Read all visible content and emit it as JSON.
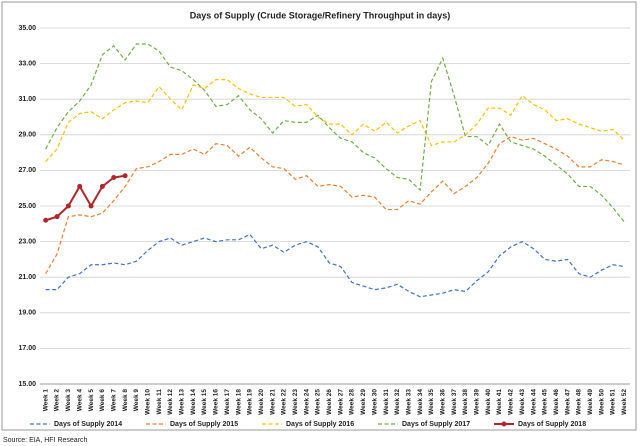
{
  "chart_data": {
    "type": "line",
    "title": "Days of Supply (Crude Storage/Refinery Throughput in days)",
    "source": "Source: EIA, HFI Research",
    "categories": [
      "Week 1",
      "Week 2",
      "Week 3",
      "Week 4",
      "Week 5",
      "Week 6",
      "Week 7",
      "Week 8",
      "Week 9",
      "Week 10",
      "Week 11",
      "Week 12",
      "Week 13",
      "Week 14",
      "Week 15",
      "Week 16",
      "Week 17",
      "Week 18",
      "Week 19",
      "Week 20",
      "Week 21",
      "Week 22",
      "Week 23",
      "Week 24",
      "Week 25",
      "Week 26",
      "Week 27",
      "Week 28",
      "Week 29",
      "Week 30",
      "Week 31",
      "Week 32",
      "Week 33",
      "Week 34",
      "Week 35",
      "Week 36",
      "Week 37",
      "Week 38",
      "Week 39",
      "Week 40",
      "Week 41",
      "Week 42",
      "Week 43",
      "Week 44",
      "Week 45",
      "Week 46",
      "Week 47",
      "Week 48",
      "Week 49",
      "Week 50",
      "Week 51",
      "Week 52"
    ],
    "series": [
      {
        "name": "Days of Supply 2014",
        "color": "#4472c4",
        "style": "dashed",
        "markers": false,
        "values": [
          20.3,
          20.3,
          21.0,
          21.2,
          21.7,
          21.7,
          21.8,
          21.7,
          21.9,
          22.5,
          23.0,
          23.2,
          22.8,
          23.0,
          23.2,
          23.0,
          23.1,
          23.1,
          23.4,
          22.6,
          22.8,
          22.4,
          22.8,
          23.0,
          22.7,
          21.8,
          21.6,
          20.7,
          20.5,
          20.3,
          20.4,
          20.6,
          20.2,
          19.9,
          20.0,
          20.1,
          20.3,
          20.2,
          20.8,
          21.3,
          22.2,
          22.7,
          23.0,
          22.6,
          22.0,
          21.9,
          22.0,
          21.2,
          21.0,
          21.4,
          21.7,
          21.6
        ]
      },
      {
        "name": "Days of Supply 2015",
        "color": "#ed7d31",
        "style": "dashed",
        "markers": false,
        "values": [
          21.2,
          22.3,
          24.4,
          24.5,
          24.4,
          24.6,
          25.3,
          26.1,
          27.1,
          27.2,
          27.5,
          27.9,
          27.9,
          28.2,
          27.9,
          28.5,
          28.4,
          27.8,
          28.3,
          27.7,
          27.2,
          27.1,
          26.5,
          26.7,
          26.1,
          26.2,
          26.1,
          25.5,
          25.6,
          25.5,
          24.8,
          24.8,
          25.3,
          25.1,
          25.8,
          26.4,
          25.7,
          26.1,
          26.6,
          27.4,
          28.5,
          28.9,
          28.7,
          28.8,
          28.5,
          28.2,
          27.8,
          27.2,
          27.2,
          27.6,
          27.5,
          27.3
        ]
      },
      {
        "name": "Days of Supply 2016",
        "color": "#ffc000",
        "style": "dashed",
        "markers": false,
        "values": [
          27.5,
          28.2,
          29.7,
          30.2,
          30.3,
          29.9,
          30.4,
          30.8,
          30.9,
          30.8,
          31.7,
          31.0,
          30.4,
          31.8,
          31.6,
          32.1,
          32.1,
          31.6,
          31.3,
          31.1,
          31.1,
          31.1,
          30.6,
          30.7,
          30.0,
          29.6,
          29.6,
          29.0,
          29.6,
          29.2,
          29.7,
          29.1,
          29.5,
          29.8,
          28.4,
          28.6,
          28.6,
          29.0,
          29.6,
          30.5,
          30.5,
          30.1,
          31.2,
          30.7,
          30.4,
          29.8,
          29.9,
          29.6,
          29.4,
          29.2,
          29.3,
          28.7
        ]
      },
      {
        "name": "Days of Supply 2017",
        "color": "#70ad47",
        "style": "dashed",
        "markers": false,
        "values": [
          28.2,
          29.4,
          30.3,
          30.9,
          31.8,
          33.5,
          34.0,
          33.2,
          34.1,
          34.1,
          33.7,
          32.8,
          32.6,
          32.1,
          31.5,
          30.6,
          30.7,
          31.2,
          30.4,
          29.9,
          29.1,
          29.8,
          29.7,
          29.7,
          30.1,
          29.4,
          28.8,
          28.6,
          28.0,
          27.7,
          27.1,
          26.6,
          26.5,
          25.9,
          32.0,
          33.3,
          31.2,
          28.9,
          28.9,
          28.4,
          29.6,
          28.6,
          28.4,
          28.2,
          27.8,
          27.3,
          26.8,
          26.1,
          26.1,
          25.6,
          24.9,
          24.1
        ]
      },
      {
        "name": "Days of Supply 2018",
        "color": "#b0262a",
        "style": "solid",
        "markers": true,
        "values": [
          24.2,
          24.4,
          25.0,
          26.1,
          25.0,
          26.1,
          26.6,
          26.7,
          null,
          null,
          null,
          null,
          null,
          null,
          null,
          null,
          null,
          null,
          null,
          null,
          null,
          null,
          null,
          null,
          null,
          null,
          null,
          null,
          null,
          null,
          null,
          null,
          null,
          null,
          null,
          null,
          null,
          null,
          null,
          null,
          null,
          null,
          null,
          null,
          null,
          null,
          null,
          null,
          null,
          null,
          null,
          null
        ]
      }
    ],
    "ylim": [
      15,
      35
    ],
    "yticks": [
      {
        "value": 15,
        "label": "15.00"
      },
      {
        "value": 17,
        "label": "17.00"
      },
      {
        "value": 19,
        "label": "19.00"
      },
      {
        "value": 21,
        "label": "21.00"
      },
      {
        "value": 23,
        "label": "23.00"
      },
      {
        "value": 25,
        "label": "25.00"
      },
      {
        "value": 27,
        "label": "27.00"
      },
      {
        "value": 29,
        "label": "29.00"
      },
      {
        "value": 31,
        "label": "31.00"
      },
      {
        "value": 33,
        "label": "33.00"
      },
      {
        "value": 35,
        "label": "35.00"
      }
    ],
    "grid": true,
    "legend": "bottom"
  }
}
